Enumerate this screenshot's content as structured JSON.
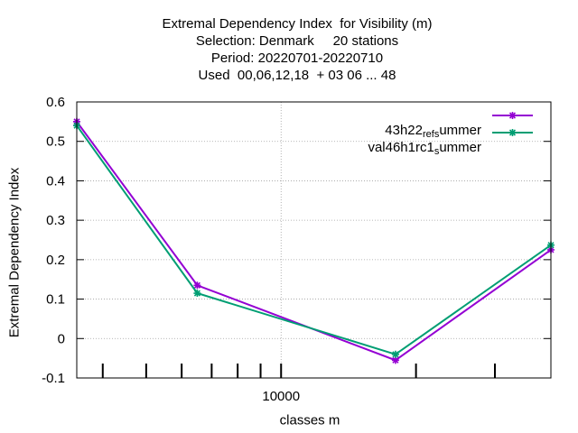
{
  "chart_data": {
    "type": "line",
    "title_lines": [
      "Extremal Dependency Index  for Visibility (m)",
      "Selection: Denmark     20 stations",
      "Period: 20220701-20220710",
      "Used  00,06,12,18  + 03 06 ... 48"
    ],
    "xlabel": "classes m",
    "ylabel": "Extremal Dependency Index",
    "xscale": "log",
    "xlim": [
      3500,
      40000
    ],
    "ylim": [
      -0.1,
      0.6
    ],
    "yticks": [
      "-0.1",
      "0",
      "0.1",
      "0.2",
      "0.3",
      "0.4",
      "0.5",
      "0.6"
    ],
    "xticks": [
      "10000"
    ],
    "grid": true,
    "legend_position": "top-right",
    "series": [
      {
        "name_parts": [
          "43h22",
          "ref",
          "s",
          "ummer"
        ],
        "color": "#9400d3",
        "x": [
          3500,
          6500,
          18000,
          40000
        ],
        "y": [
          0.55,
          0.135,
          -0.055,
          0.225
        ]
      },
      {
        "name_parts": [
          "val46h1rc1",
          "",
          "s",
          "ummer"
        ],
        "color": "#009e73",
        "x": [
          3500,
          6500,
          18000,
          40000
        ],
        "y": [
          0.54,
          0.115,
          -0.04,
          0.237
        ]
      }
    ]
  }
}
